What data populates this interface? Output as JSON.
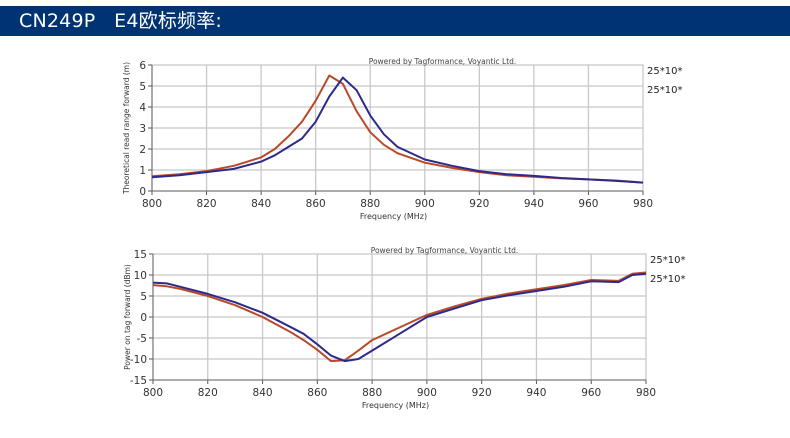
{
  "header": {
    "title": "CN249P   E4欧标频率:",
    "background": "#003371"
  },
  "colors": {
    "series_blue": "#2e2a8a",
    "series_red": "#b84a2a",
    "grid": "#c8c8c8",
    "axis_text": "#333333"
  },
  "chart_data": [
    {
      "type": "line",
      "title": "Powered by Tagformance, Voyantic Ltd.",
      "xlabel": "Frequency (MHz)",
      "ylabel": "Theoretical read range forward (m)",
      "xlim": [
        800,
        980
      ],
      "ylim": [
        0,
        6
      ],
      "x_ticks": [
        800,
        820,
        840,
        860,
        880,
        900,
        920,
        940,
        960,
        980
      ],
      "y_ticks": [
        0,
        1,
        2,
        3,
        4,
        5,
        6
      ],
      "grid": true,
      "legend_position": "right",
      "x": [
        800,
        810,
        820,
        830,
        840,
        845,
        850,
        855,
        860,
        865,
        870,
        875,
        880,
        885,
        890,
        900,
        910,
        920,
        930,
        940,
        950,
        960,
        970,
        980
      ],
      "series": [
        {
          "name": "25*10*",
          "color": "#2e2a8a",
          "values": [
            0.65,
            0.75,
            0.9,
            1.05,
            1.4,
            1.7,
            2.1,
            2.5,
            3.3,
            4.5,
            5.4,
            4.8,
            3.6,
            2.7,
            2.1,
            1.5,
            1.2,
            0.95,
            0.8,
            0.72,
            0.62,
            0.55,
            0.48,
            0.4
          ]
        },
        {
          "name": "25*10*",
          "color": "#b84a2a",
          "values": [
            0.7,
            0.8,
            0.95,
            1.2,
            1.6,
            2.0,
            2.6,
            3.3,
            4.3,
            5.5,
            5.1,
            3.8,
            2.8,
            2.2,
            1.8,
            1.35,
            1.1,
            0.9,
            0.75,
            0.68,
            0.6,
            0.55,
            0.5,
            0.4
          ]
        }
      ]
    },
    {
      "type": "line",
      "title": "Powered by Tagformance, Voyantic Ltd.",
      "xlabel": "Frequency (MHz)",
      "ylabel": "Power on tag forward (dBm)",
      "xlim": [
        800,
        980
      ],
      "ylim": [
        -15,
        15
      ],
      "x_ticks": [
        800,
        820,
        840,
        860,
        880,
        900,
        920,
        940,
        960,
        980
      ],
      "y_ticks": [
        15,
        10,
        5,
        0,
        -5,
        -10,
        -15
      ],
      "grid": true,
      "legend_position": "right",
      "x": [
        800,
        805,
        810,
        820,
        830,
        840,
        850,
        855,
        860,
        865,
        870,
        875,
        880,
        890,
        900,
        910,
        920,
        930,
        940,
        950,
        960,
        970,
        975,
        980
      ],
      "series": [
        {
          "name": "25*10*",
          "color": "#2e2a8a",
          "values": [
            8.2,
            8.0,
            7.2,
            5.5,
            3.5,
            1.0,
            -2.3,
            -4.0,
            -6.5,
            -9.2,
            -10.5,
            -10.0,
            -8.0,
            -4.0,
            0.0,
            2.0,
            4.0,
            5.2,
            6.2,
            7.2,
            8.5,
            8.3,
            10.0,
            10.3
          ]
        },
        {
          "name": "25*10*",
          "color": "#b84a2a",
          "values": [
            7.6,
            7.3,
            6.7,
            5.0,
            2.8,
            0.0,
            -3.5,
            -5.5,
            -7.8,
            -10.5,
            -10.3,
            -8.0,
            -5.5,
            -2.5,
            0.5,
            2.5,
            4.3,
            5.6,
            6.6,
            7.6,
            8.8,
            8.6,
            10.3,
            10.6
          ]
        }
      ]
    }
  ]
}
